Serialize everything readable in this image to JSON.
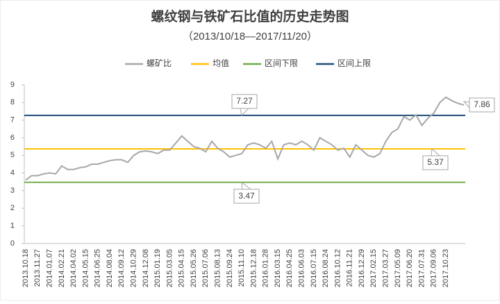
{
  "chart_data": {
    "type": "line",
    "title": "螺纹钢与铁矿石比值的历史走势图",
    "subtitle": "（2013/10/18—2017/11/20）",
    "categories": [
      "2013.10.18",
      null,
      "2013.11.27",
      null,
      "2014.01.07",
      null,
      "2014.02.21",
      null,
      "2014.04.02",
      null,
      "2014.05.15",
      null,
      "2014.06.25",
      null,
      "2014.08.04",
      null,
      "2014.09.12",
      null,
      "2014.10.29",
      null,
      "2014.12.08",
      null,
      "2015.01.19",
      null,
      "2015.03.05",
      null,
      "2015.04.15",
      null,
      "2015.05.26",
      null,
      "2015.07.06",
      null,
      "2015.08.13",
      null,
      "2015.09.24",
      null,
      "2015.11.10",
      null,
      "2015.12.18",
      null,
      "2016.01.28",
      null,
      "2016.03.15",
      null,
      "2016.04.25",
      null,
      "2016.06.03",
      null,
      "2016.07.15",
      null,
      "2016.08.24",
      null,
      "2016.10.12",
      null,
      "2016.11.21",
      null,
      "2016.12.29",
      null,
      "2017.02.15",
      null,
      "2017.03.27",
      null,
      "2017.05.09",
      null,
      "2017.06.20",
      null,
      "2017.07.31",
      null,
      "2017.09.06",
      null,
      "2017.10.23",
      null,
      null,
      null
    ],
    "series": [
      {
        "name": "螺矿比",
        "color": "#a6a6a6",
        "values": [
          3.6,
          3.85,
          3.85,
          3.95,
          4.0,
          3.95,
          4.4,
          4.2,
          4.2,
          4.3,
          4.35,
          4.5,
          4.5,
          4.6,
          4.7,
          4.75,
          4.75,
          4.6,
          5.0,
          5.2,
          5.25,
          5.2,
          5.1,
          5.3,
          5.3,
          5.7,
          6.1,
          5.8,
          5.5,
          5.4,
          5.2,
          5.8,
          5.4,
          5.2,
          4.9,
          5.0,
          5.1,
          5.6,
          5.7,
          5.6,
          5.4,
          5.8,
          4.8,
          5.6,
          5.7,
          5.6,
          5.8,
          5.6,
          5.3,
          6.0,
          5.8,
          5.6,
          5.3,
          5.4,
          4.9,
          5.6,
          5.3,
          5.0,
          4.9,
          5.1,
          5.8,
          6.3,
          6.5,
          7.2,
          7.0,
          7.3,
          6.7,
          7.1,
          7.4,
          8.0,
          8.3,
          8.1,
          7.95,
          7.86
        ]
      },
      {
        "name": "均值",
        "color": "#ffc000",
        "value": 5.37
      },
      {
        "name": "区间下限",
        "color": "#70ad47",
        "value": 3.47
      },
      {
        "name": "区间上限",
        "color": "#1f4e79",
        "value": 7.27
      }
    ],
    "ylim": [
      0,
      9
    ],
    "yticks": [
      0,
      1,
      2,
      3,
      4,
      5,
      6,
      7,
      8,
      9
    ]
  }
}
